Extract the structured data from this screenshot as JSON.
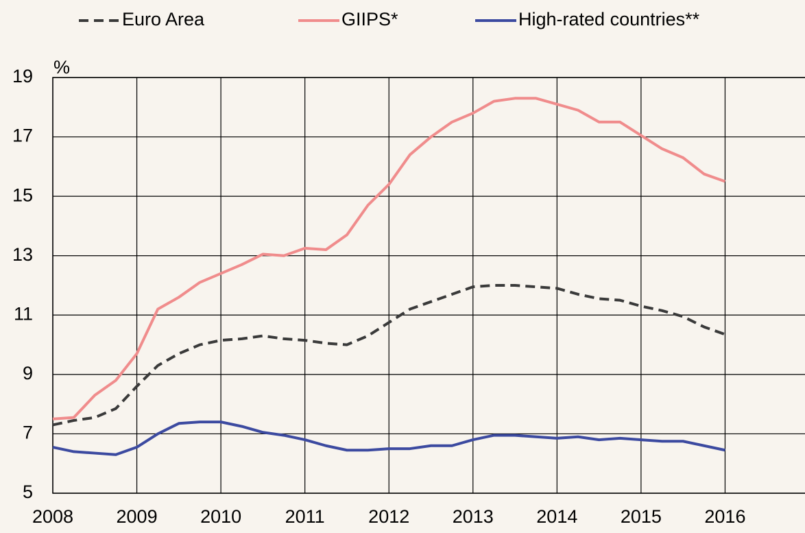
{
  "chart_data": {
    "type": "line",
    "y_unit": "%",
    "x": [
      2008,
      2008.25,
      2008.5,
      2008.75,
      2009,
      2009.25,
      2009.5,
      2009.75,
      2010,
      2010.25,
      2010.5,
      2010.75,
      2011,
      2011.25,
      2011.5,
      2011.75,
      2012,
      2012.25,
      2012.5,
      2012.75,
      2013,
      2013.25,
      2013.5,
      2013.75,
      2014,
      2014.25,
      2014.5,
      2014.75,
      2015,
      2015.25,
      2015.5,
      2015.75,
      2016
    ],
    "series": [
      {
        "name": "Euro Area",
        "color": "#3a3a3a",
        "linestyle": "dashed",
        "values": [
          7.3,
          7.45,
          7.55,
          7.85,
          8.6,
          9.3,
          9.7,
          10.0,
          10.15,
          10.2,
          10.3,
          10.2,
          10.15,
          10.05,
          10.0,
          10.3,
          10.75,
          11.2,
          11.45,
          11.7,
          11.95,
          12.0,
          12.0,
          11.95,
          11.9,
          11.7,
          11.55,
          11.5,
          11.3,
          11.15,
          10.95,
          10.6,
          10.35
        ]
      },
      {
        "name": "GIIPS*",
        "color": "#f08c8c",
        "linestyle": "solid",
        "values": [
          7.5,
          7.55,
          8.3,
          8.8,
          9.7,
          11.2,
          11.6,
          12.1,
          12.4,
          12.7,
          13.05,
          13.0,
          13.25,
          13.2,
          13.7,
          14.7,
          15.4,
          16.4,
          17.0,
          17.5,
          17.8,
          18.2,
          18.3,
          18.3,
          18.1,
          17.9,
          17.5,
          17.5,
          17.05,
          16.6,
          16.3,
          15.75,
          15.5
        ]
      },
      {
        "name": "High-rated countries**",
        "color": "#3c4aa0",
        "linestyle": "solid",
        "values": [
          6.55,
          6.4,
          6.35,
          6.3,
          6.55,
          7.0,
          7.35,
          7.4,
          7.4,
          7.25,
          7.05,
          6.95,
          6.8,
          6.6,
          6.45,
          6.45,
          6.5,
          6.5,
          6.6,
          6.6,
          6.8,
          6.95,
          6.95,
          6.9,
          6.85,
          6.9,
          6.8,
          6.85,
          6.8,
          6.75,
          6.75,
          6.6,
          6.45
        ]
      }
    ],
    "xlim": [
      2008,
      2017
    ],
    "xticks": [
      2008,
      2009,
      2010,
      2011,
      2012,
      2013,
      2014,
      2015,
      2016
    ],
    "ylim": [
      5,
      19
    ],
    "yticks": [
      5,
      7,
      9,
      11,
      13,
      15,
      17,
      19
    ],
    "grid": true,
    "legend": "top"
  }
}
